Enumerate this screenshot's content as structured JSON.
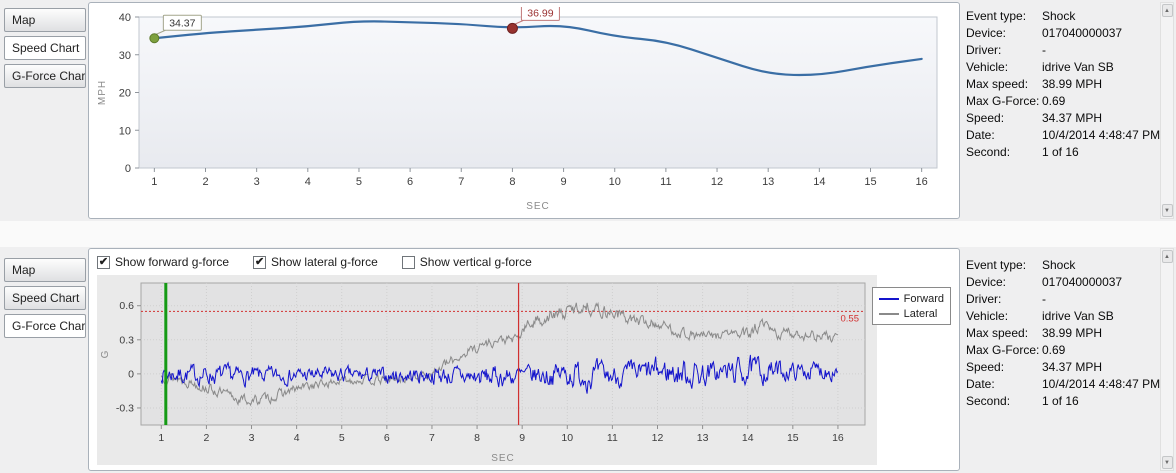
{
  "icons": {
    "scroll_up": "▲",
    "scroll_down": "▼",
    "check": "✔"
  },
  "colors": {
    "speed_line": "#3a6ea5",
    "start_marker": "#7da03e",
    "event_marker": "#97322f",
    "annotation_start_border": "#a3a58c",
    "annotation_event_border": "#c17a7a",
    "annotation_text": "#333333",
    "annotation_event_text": "#9b3232",
    "forward_line": "#1414cc",
    "lateral_line": "#8a8a8a",
    "threshold_line": "#d23030",
    "start_vline": "#149a14",
    "event_vline": "#d03030"
  },
  "tabs_top": [
    {
      "label": "Map",
      "selected": false
    },
    {
      "label": "Speed Chart",
      "selected": true
    },
    {
      "label": "G-Force Chart",
      "selected": false
    }
  ],
  "tabs_bottom": [
    {
      "label": "Map",
      "selected": false
    },
    {
      "label": "Speed Chart",
      "selected": false
    },
    {
      "label": "G-Force Chart",
      "selected": true
    }
  ],
  "checkboxes": [
    {
      "label": "Show forward g-force",
      "checked": true
    },
    {
      "label": "Show lateral g-force",
      "checked": true
    },
    {
      "label": "Show vertical g-force",
      "checked": false
    }
  ],
  "info": {
    "rows": [
      {
        "label": "Event type:",
        "value": "Shock"
      },
      {
        "label": "Device:",
        "value": "017040000037"
      },
      {
        "label": "Driver:",
        "value": "-"
      },
      {
        "label": "Vehicle:",
        "value": "idrive Van SB"
      },
      {
        "label": "Max speed:",
        "value": "38.99 MPH"
      },
      {
        "label": "Max G-Force:",
        "value": "0.69"
      },
      {
        "label": "Speed:",
        "value": "34.37 MPH"
      },
      {
        "label": "Date:",
        "value": "10/4/2014 4:48:47 PM"
      },
      {
        "label": "Second:",
        "value": "1 of 16"
      }
    ]
  },
  "chart_data": [
    {
      "type": "line",
      "name": "speed-chart",
      "xlabel": "SEC",
      "ylabel": "MPH",
      "x": [
        1,
        2,
        3,
        4,
        5,
        6,
        7,
        8,
        9,
        10,
        11,
        12,
        13,
        14,
        15,
        16
      ],
      "values": [
        34.37,
        35.8,
        36.6,
        37.5,
        38.99,
        38.6,
        38.2,
        36.99,
        38.0,
        34.8,
        33.6,
        29.2,
        24.8,
        24.5,
        27.0,
        28.9
      ],
      "ylim": [
        0,
        40
      ],
      "yticks": [
        0,
        10,
        20,
        30,
        40
      ],
      "xlim": [
        0.7,
        16.3
      ],
      "annotations": [
        {
          "x": 1,
          "y": 34.37,
          "label": "34.37",
          "kind": "start"
        },
        {
          "x": 8,
          "y": 36.99,
          "label": "36.99",
          "kind": "event"
        }
      ]
    },
    {
      "type": "line",
      "name": "g-force-chart",
      "xlabel": "SEC",
      "ylabel": "G",
      "xticks": [
        1,
        2,
        3,
        4,
        5,
        6,
        7,
        8,
        9,
        10,
        11,
        12,
        13,
        14,
        15,
        16
      ],
      "xlim": [
        0.55,
        16.6
      ],
      "ylim": [
        -0.45,
        0.8
      ],
      "yticks": [
        -0.3,
        0,
        0.3,
        0.6
      ],
      "threshold": {
        "value": 0.55,
        "label": "0.55"
      },
      "marker_lines": [
        {
          "x": 1.1,
          "color_key": "start_vline",
          "width": 3
        },
        {
          "x": 8.92,
          "color_key": "event_vline",
          "width": 1.2
        }
      ],
      "series": [
        {
          "name": "Forward",
          "color_key": "forward_line",
          "seed": 7,
          "mean": [
            [
              1,
              0
            ],
            [
              2,
              -0.01
            ],
            [
              3,
              -0.02
            ],
            [
              4,
              -0.01
            ],
            [
              5,
              -0.01
            ],
            [
              6,
              -0.02
            ],
            [
              7,
              -0.01
            ],
            [
              8,
              -0.03
            ],
            [
              9,
              -0.02
            ],
            [
              10,
              0
            ],
            [
              11,
              -0.02
            ],
            [
              12,
              0.02
            ],
            [
              13,
              0
            ],
            [
              14,
              0.03
            ],
            [
              15,
              0.02
            ],
            [
              16,
              0.04
            ]
          ],
          "amp": [
            [
              1,
              0.08
            ],
            [
              2,
              0.09
            ],
            [
              3,
              0.08
            ],
            [
              4,
              0.07
            ],
            [
              5,
              0.07
            ],
            [
              6,
              0.07
            ],
            [
              7,
              0.08
            ],
            [
              8,
              0.1
            ],
            [
              9,
              0.09
            ],
            [
              10,
              0.12
            ],
            [
              10.5,
              0.13
            ],
            [
              11,
              0.1
            ],
            [
              12,
              0.12
            ],
            [
              12.7,
              0.14
            ],
            [
              13.3,
              0.1
            ],
            [
              14,
              0.13
            ],
            [
              14.6,
              0.1
            ],
            [
              15,
              0.08
            ],
            [
              16,
              0.09
            ]
          ]
        },
        {
          "name": "Lateral",
          "color_key": "lateral_line",
          "seed": 13,
          "mean": [
            [
              1,
              -0.02
            ],
            [
              1.4,
              -0.04
            ],
            [
              1.8,
              -0.09
            ],
            [
              2.2,
              -0.15
            ],
            [
              2.6,
              -0.21
            ],
            [
              3,
              -0.24
            ],
            [
              3.4,
              -0.21
            ],
            [
              3.8,
              -0.16
            ],
            [
              4.2,
              -0.11
            ],
            [
              4.6,
              -0.09
            ],
            [
              5,
              -0.06
            ],
            [
              5.4,
              -0.05
            ],
            [
              5.8,
              -0.06
            ],
            [
              6.2,
              -0.05
            ],
            [
              6.6,
              -0.03
            ],
            [
              7,
              0.01
            ],
            [
              7.4,
              0.1
            ],
            [
              7.8,
              0.2
            ],
            [
              8.2,
              0.27
            ],
            [
              8.6,
              0.3
            ],
            [
              8.9,
              0.3
            ],
            [
              9.05,
              0.4
            ],
            [
              9.3,
              0.47
            ],
            [
              9.6,
              0.5
            ],
            [
              9.9,
              0.53
            ],
            [
              10.2,
              0.58
            ],
            [
              10.45,
              0.6
            ],
            [
              10.7,
              0.56
            ],
            [
              11,
              0.54
            ],
            [
              11.3,
              0.5
            ],
            [
              11.6,
              0.46
            ],
            [
              12,
              0.44
            ],
            [
              12.4,
              0.38
            ],
            [
              12.8,
              0.34
            ],
            [
              13.2,
              0.33
            ],
            [
              13.6,
              0.36
            ],
            [
              14,
              0.34
            ],
            [
              14.3,
              0.43
            ],
            [
              14.6,
              0.35
            ],
            [
              15,
              0.36
            ],
            [
              15.4,
              0.34
            ],
            [
              15.7,
              0.33
            ],
            [
              16,
              0.3
            ]
          ],
          "amp": [
            [
              1,
              0.05
            ],
            [
              2,
              0.05
            ],
            [
              3,
              0.05
            ],
            [
              4,
              0.045
            ],
            [
              5,
              0.04
            ],
            [
              6,
              0.04
            ],
            [
              7,
              0.045
            ],
            [
              8,
              0.05
            ],
            [
              8.8,
              0.045
            ],
            [
              9,
              0.06
            ],
            [
              10,
              0.07
            ],
            [
              10.6,
              0.065
            ],
            [
              11,
              0.06
            ],
            [
              12,
              0.055
            ],
            [
              13,
              0.05
            ],
            [
              13.8,
              0.05
            ],
            [
              14.2,
              0.065
            ],
            [
              15,
              0.055
            ],
            [
              16,
              0.05
            ]
          ]
        }
      ]
    }
  ]
}
